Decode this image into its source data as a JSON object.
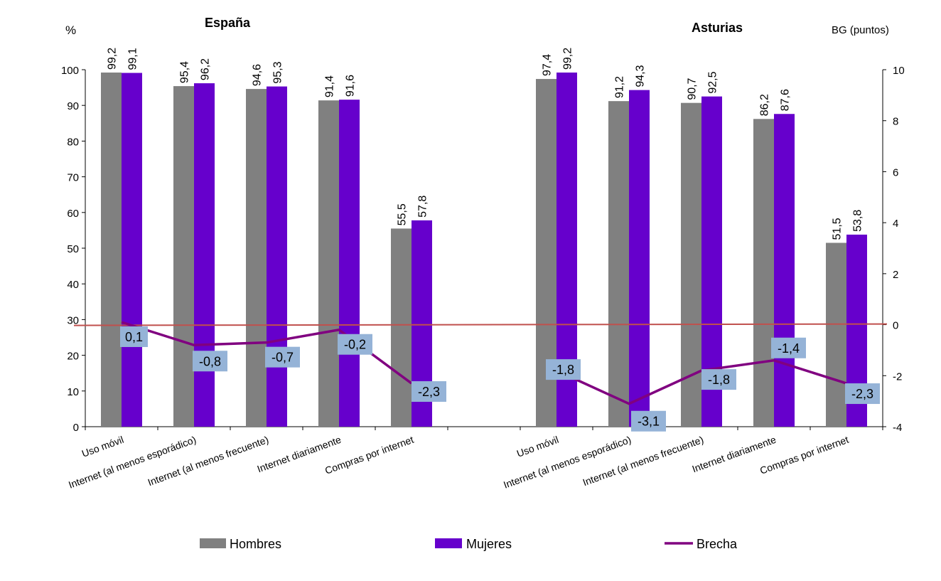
{
  "chart_data": {
    "type": "bar",
    "panels": [
      {
        "title": "España",
        "categories": [
          "Uso móvil",
          "Internet (al menos esporádico)",
          "Internet (al menos frecuente)",
          "Internet diariamente",
          "Compras por internet"
        ],
        "hombres": [
          99.2,
          95.4,
          94.6,
          91.4,
          55.5
        ],
        "mujeres": [
          99.1,
          96.2,
          95.3,
          91.6,
          57.8
        ],
        "brecha": [
          0.1,
          -0.8,
          -0.7,
          -0.2,
          -2.3
        ],
        "hombres_labels": [
          "99,2",
          "95,4",
          "94,6",
          "91,4",
          "55,5"
        ],
        "mujeres_labels": [
          "99,1",
          "96,2",
          "95,3",
          "91,6",
          "57,8"
        ],
        "brecha_labels": [
          "0,1",
          "-0,8",
          "-0,7",
          "-0,2",
          "-2,3"
        ]
      },
      {
        "title": "Asturias",
        "categories": [
          "Uso móvil",
          "Internet (al menos esporádico)",
          "Internet (al menos frecuente)",
          "Internet diariamente",
          "Compras por internet"
        ],
        "hombres": [
          97.4,
          91.2,
          90.7,
          86.2,
          51.5
        ],
        "mujeres": [
          99.2,
          94.3,
          92.5,
          87.6,
          53.8
        ],
        "brecha": [
          -1.8,
          -3.1,
          -1.8,
          -1.4,
          -2.3
        ],
        "hombres_labels": [
          "97,4",
          "91,2",
          "90,7",
          "86,2",
          "51,5"
        ],
        "mujeres_labels": [
          "99,2",
          "94,3",
          "92,5",
          "87,6",
          "53,8"
        ],
        "brecha_labels": [
          "-1,8",
          "-3,1",
          "-1,8",
          "-1,4",
          "-2,3"
        ]
      }
    ],
    "y_left": {
      "label": "%",
      "range": [
        0,
        100
      ],
      "ticks": [
        "0",
        "10",
        "20",
        "30",
        "40",
        "50",
        "60",
        "70",
        "80",
        "90",
        "100"
      ]
    },
    "y_right": {
      "label": "BG (puntos)",
      "range": [
        -4,
        10
      ],
      "ticks": [
        "-4",
        "-2",
        "0",
        "2",
        "4",
        "6",
        "8",
        "10"
      ]
    },
    "legend": {
      "position": "bottom",
      "items": [
        {
          "name": "Hombres",
          "color": "#808080",
          "kind": "bar"
        },
        {
          "name": "Mujeres",
          "color": "#6600CC",
          "kind": "bar"
        },
        {
          "name": "Brecha",
          "color": "#800080",
          "kind": "line"
        }
      ]
    },
    "zero_line_color": "#C0504D",
    "label_box_color": "#95B3D7",
    "grid": false
  }
}
